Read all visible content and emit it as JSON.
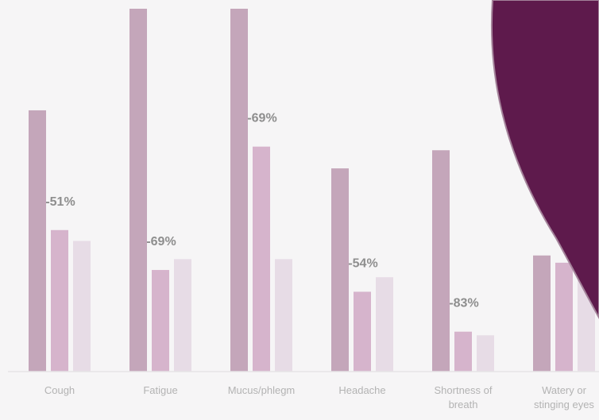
{
  "chart_data": {
    "type": "bar",
    "title": "",
    "xlabel": "",
    "ylabel": "",
    "ylim": [
      0,
      100
    ],
    "grid": false,
    "categories": [
      "Cough",
      "Fatigue",
      "Mucus/phlegm",
      "Headache",
      "Shortness of breath",
      "Watery or stinging eyes"
    ],
    "category_label_lines": [
      [
        "Cough"
      ],
      [
        "Fatigue"
      ],
      [
        "Mucus/phlegm"
      ],
      [
        "Headache"
      ],
      [
        "Shortness of",
        "breath"
      ],
      [
        "Watery or",
        "stinging eyes"
      ]
    ],
    "series": [
      {
        "values": [
          72,
          100,
          100,
          56,
          61,
          32
        ]
      },
      {
        "values": [
          39,
          28,
          62,
          22,
          11,
          30
        ]
      },
      {
        "values": [
          36,
          31,
          31,
          26,
          10,
          28
        ]
      }
    ],
    "change_labels": [
      "-51%",
      "-69%",
      "-69%",
      "-54%",
      "-83%",
      ""
    ],
    "colors": [
      "#c4a6ba",
      "#d6b4cc",
      "#e7dce6"
    ],
    "label_color": "#8e8e8e",
    "axis_color": "#e6e4e6",
    "overlay_color": "#5e1a4c"
  }
}
